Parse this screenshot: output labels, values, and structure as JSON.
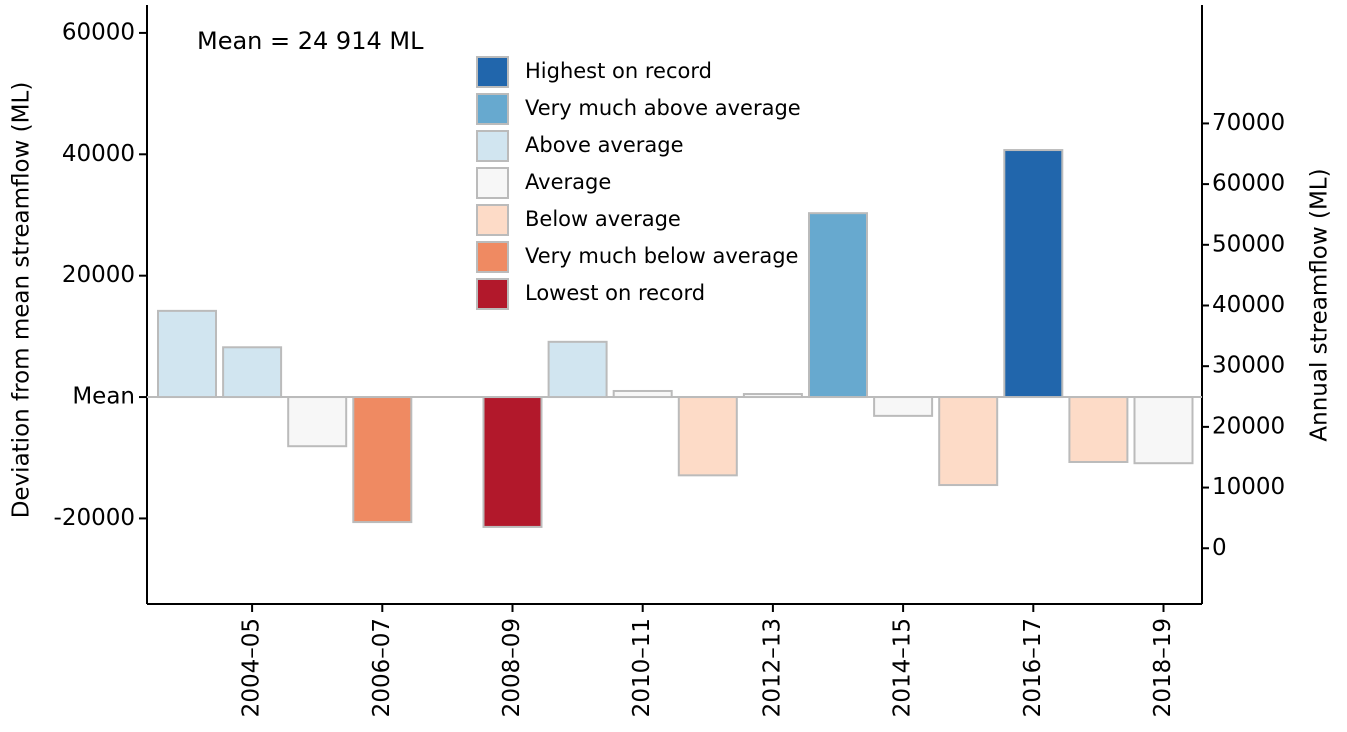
{
  "chart_data": {
    "type": "bar",
    "annotation": "Mean = 24 914 ML",
    "ylabel": "Deviation from mean streamflow (ML)",
    "y2label": "Annual streamflow (ML)",
    "categories": [
      null,
      "2004–05",
      null,
      "2006–07",
      null,
      "2008–09",
      null,
      "2010–11",
      null,
      "2012–13",
      null,
      "2014–15",
      null,
      "2016–17",
      null,
      "2018–19"
    ],
    "values": [
      14200,
      8200,
      -8100,
      -20600,
      null,
      -21400,
      9100,
      1000,
      -12900,
      500,
      30300,
      -3100,
      -14500,
      40700,
      -10700,
      -10900
    ],
    "colors": [
      "#d1e5f0",
      "#d1e5f0",
      "#f7f7f7",
      "#ef8a62",
      null,
      "#b2182b",
      "#d1e5f0",
      "#f7f7f7",
      "#fddbc7",
      "#f7f7f7",
      "#67a9cf",
      "#f7f7f7",
      "#fddbc7",
      "#2166ac",
      "#fddbc7",
      "#f7f7f7"
    ],
    "legend": [
      {
        "name": "Highest on record",
        "color": "#2166ac"
      },
      {
        "name": "Very much above average",
        "color": "#67a9cf"
      },
      {
        "name": "Above average",
        "color": "#d1e5f0"
      },
      {
        "name": "Average",
        "color": "#f7f7f7"
      },
      {
        "name": "Below average",
        "color": "#fddbc7"
      },
      {
        "name": "Very much below average",
        "color": "#ef8a62"
      },
      {
        "name": "Lowest on record",
        "color": "#b2182b"
      }
    ],
    "ylim": [
      -34100,
      64600
    ],
    "yticks": [
      -20000,
      {
        "value": 0,
        "label": "Mean"
      },
      20000,
      40000,
      60000
    ],
    "y2lim": [
      -9186,
      89514
    ],
    "y2ticks": [
      0,
      10000,
      20000,
      30000,
      40000,
      50000,
      60000,
      70000
    ]
  }
}
